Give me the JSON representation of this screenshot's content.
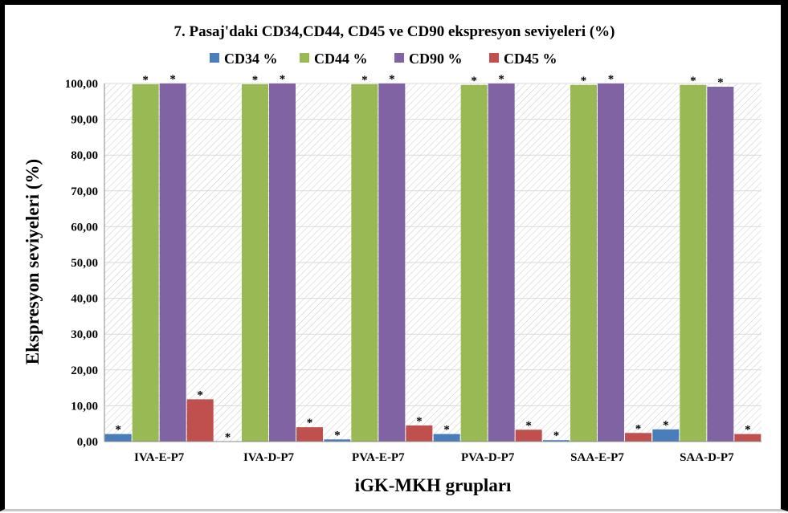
{
  "chart_data": {
    "type": "bar",
    "title": "7. Pasaj'daki CD34,CD44, CD45 ve CD90 ekspresyon seviyeleri (%)",
    "xlabel": "iGK-MKH grupları",
    "ylabel": "Ekspresyon seviyeleri (%)",
    "ylim": [
      0,
      100
    ],
    "yticks": [
      "0,00",
      "10,00",
      "20,00",
      "30,00",
      "40,00",
      "50,00",
      "60,00",
      "70,00",
      "80,00",
      "90,00",
      "100,00"
    ],
    "categories": [
      "IVA-E-P7",
      "IVA-D-P7",
      "PVA-E-P7",
      "PVA-D-P7",
      "SAA-E-P7",
      "SAA-D-P7"
    ],
    "series": [
      {
        "name": "CD34 %",
        "color": "#4a7ebb",
        "values": [
          2.1,
          0.0,
          0.6,
          2.1,
          0.4,
          3.4
        ]
      },
      {
        "name": "CD44 %",
        "color": "#98b954",
        "values": [
          99.8,
          99.8,
          99.8,
          99.6,
          99.6,
          99.6
        ]
      },
      {
        "name": "CD90 %",
        "color": "#7f63a2",
        "values": [
          100.0,
          100.0,
          100.0,
          100.0,
          100.0,
          99.1
        ]
      },
      {
        "name": "CD45 %",
        "color": "#c0504d",
        "values": [
          11.8,
          4.0,
          4.5,
          3.3,
          2.4,
          2.1
        ]
      }
    ],
    "marker": "*",
    "grid": true,
    "legend_position": "top"
  }
}
